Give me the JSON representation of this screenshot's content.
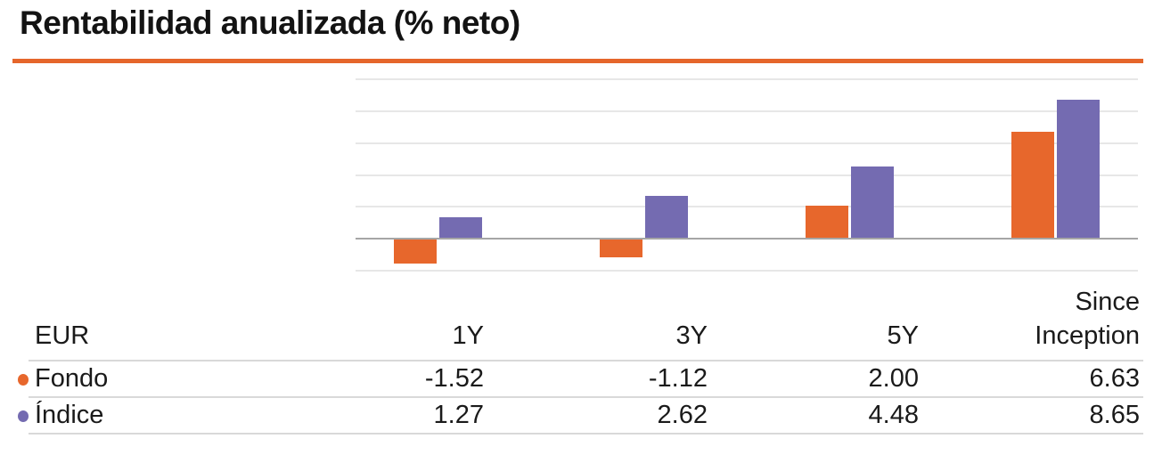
{
  "title": "Rentabilidad anualizada (% neto)",
  "colors": {
    "divider": "#E5662B",
    "fondo": "#E7672C",
    "indice": "#746BB1",
    "gridline": "#E7E7E7",
    "axis": "#A6A6A6"
  },
  "chart_data": {
    "type": "bar",
    "title": "Rentabilidad anualizada (% neto)",
    "categories": [
      "1Y",
      "3Y",
      "5Y",
      "Since Inception"
    ],
    "series": [
      {
        "name": "Fondo",
        "color": "#E7672C",
        "values": [
          -1.52,
          -1.12,
          2.0,
          6.63
        ]
      },
      {
        "name": "Índice",
        "color": "#746BB1",
        "values": [
          1.27,
          2.62,
          4.48,
          8.65
        ]
      }
    ],
    "xlabel": "",
    "ylabel": "",
    "ylim": [
      -2,
      10
    ],
    "gridline_step": 2,
    "grid": true,
    "legend_position": "table-below",
    "currency": "EUR"
  },
  "table": {
    "currency_header": "EUR",
    "column_headers": [
      "1Y",
      "3Y",
      "5Y",
      "Since\nInception"
    ],
    "rows": [
      {
        "label": "Fondo",
        "values": [
          "-1.52",
          "-1.12",
          "2.00",
          "6.63"
        ]
      },
      {
        "label": "Índice",
        "values": [
          "1.27",
          "2.62",
          "4.48",
          "8.65"
        ]
      }
    ]
  }
}
